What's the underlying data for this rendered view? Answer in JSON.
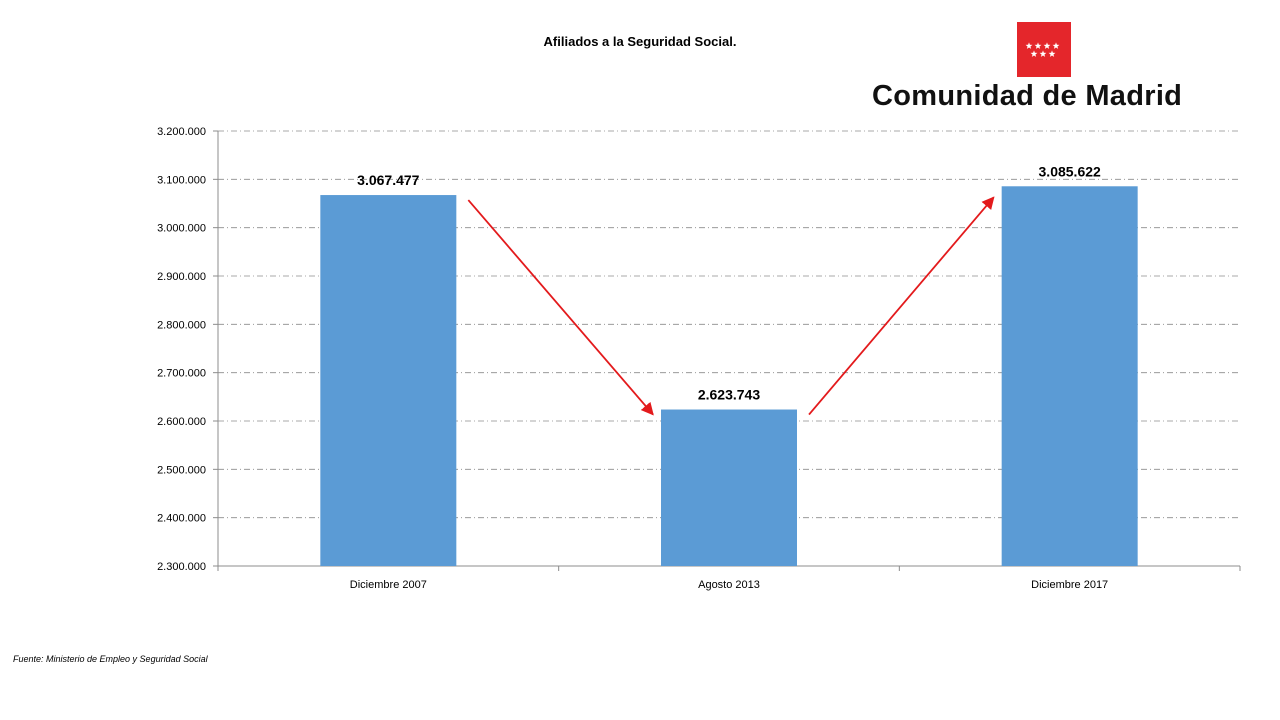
{
  "chart_data": {
    "type": "bar",
    "title": "Afiliados a la Seguridad Social.",
    "categories": [
      "Diciembre 2007",
      "Agosto 2013",
      "Diciembre 2017"
    ],
    "values": [
      3067477,
      2623743,
      3085622
    ],
    "data_labels": [
      "3.067.477",
      "2.623.743",
      "3.085.622"
    ],
    "ylim": [
      2300000,
      3200000
    ],
    "y_ticks": [
      2300000,
      2400000,
      2500000,
      2600000,
      2700000,
      2800000,
      2900000,
      3000000,
      3100000,
      3200000
    ],
    "y_tick_labels": [
      "2.300.000",
      "2.400.000",
      "2.500.000",
      "2.600.000",
      "2.700.000",
      "2.800.000",
      "2.900.000",
      "3.000.000",
      "3.100.000",
      "3.200.000"
    ],
    "grid": true,
    "legend": "none",
    "bar_color": "#5b9bd5",
    "arrow_color": "#e31a1c",
    "gridline_color": "#8c8c8c"
  },
  "logo": {
    "text": "Comunidad de Madrid",
    "flag_color": "#e4262b",
    "star_color": "#ffffff"
  },
  "source_note": "Fuente: Ministerio de Empleo y Seguridad Social"
}
